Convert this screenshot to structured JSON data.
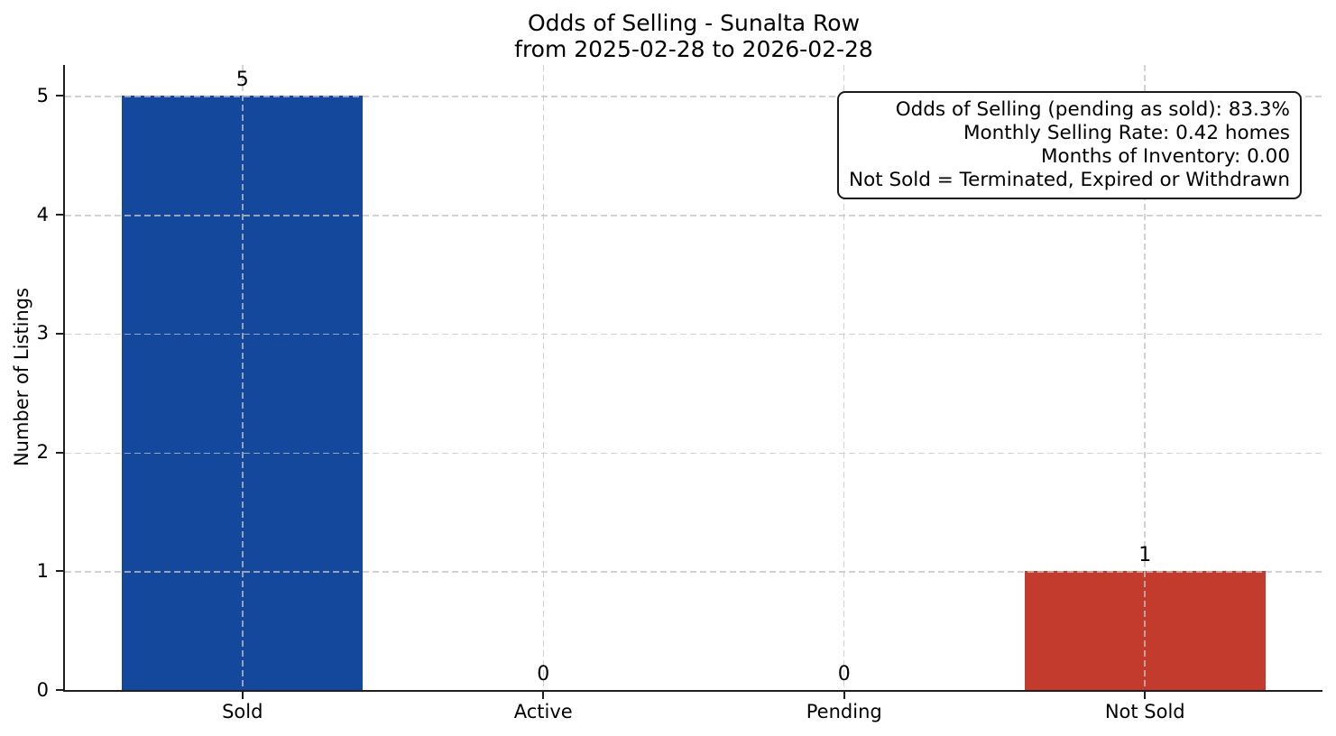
{
  "chart_data": {
    "type": "bar",
    "title": "Odds of Selling - Sunalta Row",
    "subtitle": "from 2025-02-28 to 2026-02-28",
    "categories": [
      "Sold",
      "Active",
      "Pending",
      "Not Sold"
    ],
    "values": [
      5,
      0,
      0,
      1
    ],
    "value_labels": [
      "5",
      "0",
      "0",
      "1"
    ],
    "bar_colors": [
      "#14489d",
      null,
      null,
      "#c23b2c"
    ],
    "xlabel": "",
    "ylabel": "Number of Listings",
    "yticks": [
      "0",
      "1",
      "2",
      "3",
      "4",
      "5"
    ],
    "ylim": [
      0,
      5.26
    ],
    "grid": "dashed light-gray, horizontal at each y tick and vertical at each category, drawn over bars",
    "legend": "none",
    "annotation": {
      "position": "top-right",
      "align": "right",
      "lines": [
        "Odds of Selling (pending as sold): 83.3%",
        "Monthly Selling Rate: 0.42 homes",
        "Months of Inventory: 0.00",
        "Not Sold = Terminated, Expired or Withdrawn"
      ]
    }
  },
  "colors": {
    "bar_sold": "#14489d",
    "bar_not_sold": "#c23b2c",
    "grid": "#c7c7c7",
    "axis": "#1f1f1f",
    "background": "#ffffff",
    "text": "#000000"
  }
}
